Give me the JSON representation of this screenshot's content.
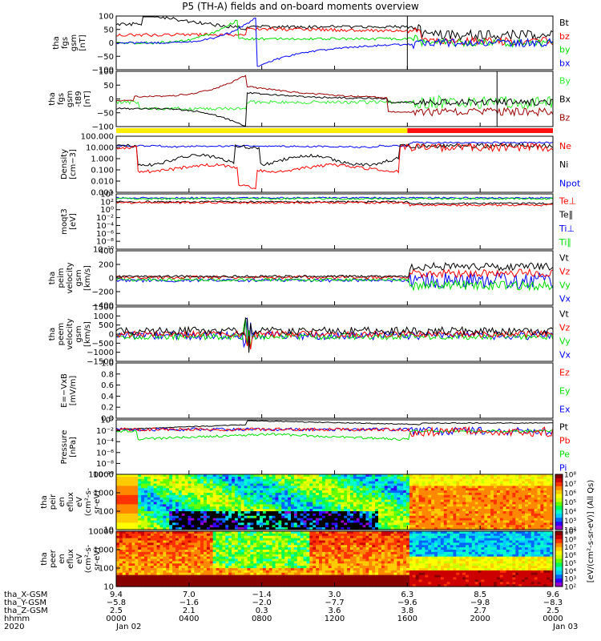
{
  "title": "P5 (TH-A) fields and on-board moments overview",
  "colors": {
    "black": "#000000",
    "red": "#ff0000",
    "green": "#00dd00",
    "blue": "#0000ff",
    "darkred": "#990000",
    "lightgreen": "#33ee33",
    "yellow": "#ffee00",
    "crimson": "#ff1111",
    "ruler": "#000000"
  },
  "chart_data": [
    {
      "id": "fgs",
      "type": "line",
      "ylabel": [
        "tha",
        "fgs",
        "gsm",
        "[nT]"
      ],
      "ylim": [
        -100,
        100
      ],
      "yticks": [
        "100",
        "50",
        "0",
        "−50",
        "−100"
      ],
      "legend": [
        {
          "name": "Bt",
          "color": "#000000"
        },
        {
          "name": "bz",
          "color": "#ff0000"
        },
        {
          "name": "by",
          "color": "#00dd00"
        },
        {
          "name": "bx",
          "color": "#0000ff"
        }
      ]
    },
    {
      "id": "fgs-t89",
      "type": "line",
      "ylabel": [
        "tha",
        "fgs",
        "gsm",
        "-t89",
        "[nT]"
      ],
      "ylim": [
        -120,
        120
      ],
      "yticks": [
        "100",
        "50",
        "0",
        "−50",
        "−100"
      ],
      "legend": [
        {
          "name": "By",
          "color": "#33ee33"
        },
        {
          "name": "Bx",
          "color": "#000000"
        },
        {
          "name": "Bz",
          "color": "#990000"
        }
      ]
    },
    {
      "id": "density",
      "type": "line",
      "scale": "log",
      "ylabel": [
        "Density",
        "[cm−3]"
      ],
      "yticks": [
        "100.000",
        "10.000",
        "1.000",
        "0.100",
        "0.010",
        "0.001"
      ],
      "legend": [
        {
          "name": "Ne",
          "color": "#ff0000"
        },
        {
          "name": "Ni",
          "color": "#000000"
        },
        {
          "name": "Npot",
          "color": "#0000ff"
        }
      ]
    },
    {
      "id": "temperature",
      "type": "line",
      "scale": "log",
      "ylabel": [
        "moqt3",
        "[eV]"
      ],
      "yticks": [
        "10⁴",
        "10²",
        "10⁰",
        "10⁻²",
        "10⁻⁴",
        "10⁻⁶",
        "10⁻⁸",
        "10⁻¹⁰"
      ],
      "legend": [
        {
          "name": "Te⊥",
          "color": "#ff0000"
        },
        {
          "name": "Te∥",
          "color": "#000000"
        },
        {
          "name": "Ti⊥",
          "color": "#0000ff"
        },
        {
          "name": "Ti∥",
          "color": "#00dd00"
        }
      ]
    },
    {
      "id": "peim-velocity",
      "type": "line",
      "ylabel": [
        "tha",
        "peim",
        "velocity",
        "gsm",
        "[km/s]"
      ],
      "ylim": [
        -400,
        400
      ],
      "yticks": [
        "400",
        "200",
        "0",
        "−200",
        "−400"
      ],
      "legend": [
        {
          "name": "Vt",
          "color": "#000000"
        },
        {
          "name": "Vz",
          "color": "#ff0000"
        },
        {
          "name": "Vy",
          "color": "#00dd00"
        },
        {
          "name": "Vx",
          "color": "#0000ff"
        }
      ]
    },
    {
      "id": "peem-velocity",
      "type": "line",
      "ylabel": [
        "tha",
        "peem",
        "velocity",
        "gsm",
        "[km/s]"
      ],
      "ylim": [
        -1500,
        1500
      ],
      "yticks": [
        "1500",
        "1000",
        "500",
        "0",
        "−500",
        "−1000",
        "−1500"
      ],
      "legend": [
        {
          "name": "Vt",
          "color": "#000000"
        },
        {
          "name": "Vz",
          "color": "#ff0000"
        },
        {
          "name": "Vy",
          "color": "#00dd00"
        },
        {
          "name": "Vx",
          "color": "#0000ff"
        }
      ]
    },
    {
      "id": "efield",
      "type": "line",
      "ylabel": [
        "E=−VxB",
        "[mV/m]"
      ],
      "ylim": [
        0,
        1
      ],
      "yticks": [
        "1.0",
        "0.8",
        "0.6",
        "0.4",
        "0.2",
        "0.0"
      ],
      "legend": [
        {
          "name": "Ez",
          "color": "#ff0000"
        },
        {
          "name": "Ey",
          "color": "#00dd00"
        },
        {
          "name": "Ex",
          "color": "#0000ff"
        }
      ]
    },
    {
      "id": "pressure",
      "type": "line",
      "scale": "log",
      "ylabel": [
        "Pressure",
        "[nPa]"
      ],
      "yticks": [
        "10⁰",
        "10⁻²",
        "10⁻⁴",
        "10⁻⁶",
        "10⁻⁸",
        "10⁻¹⁰"
      ],
      "legend": [
        {
          "name": "Pt",
          "color": "#000000"
        },
        {
          "name": "Pb",
          "color": "#ff0000"
        },
        {
          "name": "Pe",
          "color": "#00dd00"
        },
        {
          "name": "Pi",
          "color": "#0000ff"
        }
      ]
    },
    {
      "id": "peir-spec",
      "type": "heatmap",
      "ylabel": [
        "tha",
        "peir",
        "en",
        "eflux",
        "eV",
        "(cm²-s-",
        "sr-eV)"
      ],
      "yticks": [
        "10000",
        "1000",
        "100",
        "10"
      ],
      "colorbar_ticks": [
        "10⁸",
        "10⁷",
        "10⁶",
        "10⁵",
        "10⁴",
        "10³",
        "10²"
      ],
      "colorbar_label": "[eV/(cm²-s-sr-eV)] (All Qs)"
    },
    {
      "id": "peer-spec",
      "type": "heatmap",
      "ylabel": [
        "tha",
        "peer",
        "en",
        "eflux",
        "eV",
        "(cm²-s-",
        "sr-eV)"
      ],
      "yticks": [
        "10000",
        "1000",
        "100",
        "10"
      ],
      "colorbar_ticks": [
        "10⁹",
        "10⁸",
        "10⁷",
        "10⁶",
        "10⁵",
        "10⁴",
        "10³",
        "10²"
      ],
      "colorbar_label": "[eV/(cm²-s-sr-eV)]"
    }
  ],
  "xaxis": {
    "row_labels": [
      "tha_X-GSM",
      "tha_Y-GSM",
      "tha_Z-GSM",
      "hhmm",
      "2020"
    ],
    "columns": [
      {
        "x": "9.4",
        "y": "−5.8",
        "z": "2.5",
        "hhmm": "0000",
        "date": "Jan 02"
      },
      {
        "x": "7.0",
        "y": "−1.6",
        "z": "2.1",
        "hhmm": "0400",
        "date": ""
      },
      {
        "x": "−1.4",
        "y": "−2.0",
        "z": "0.3",
        "hhmm": "0800",
        "date": ""
      },
      {
        "x": "3.0",
        "y": "−7.7",
        "z": "3.6",
        "hhmm": "1200",
        "date": ""
      },
      {
        "x": "6.3",
        "y": "−9.6",
        "z": "3.8",
        "hhmm": "1600",
        "date": ""
      },
      {
        "x": "8.5",
        "y": "−9.8",
        "z": "2.7",
        "hhmm": "2000",
        "date": ""
      },
      {
        "x": "9.6",
        "y": "−8.3",
        "z": "2.5",
        "hhmm": "0000",
        "date": "Jan 03"
      }
    ]
  }
}
